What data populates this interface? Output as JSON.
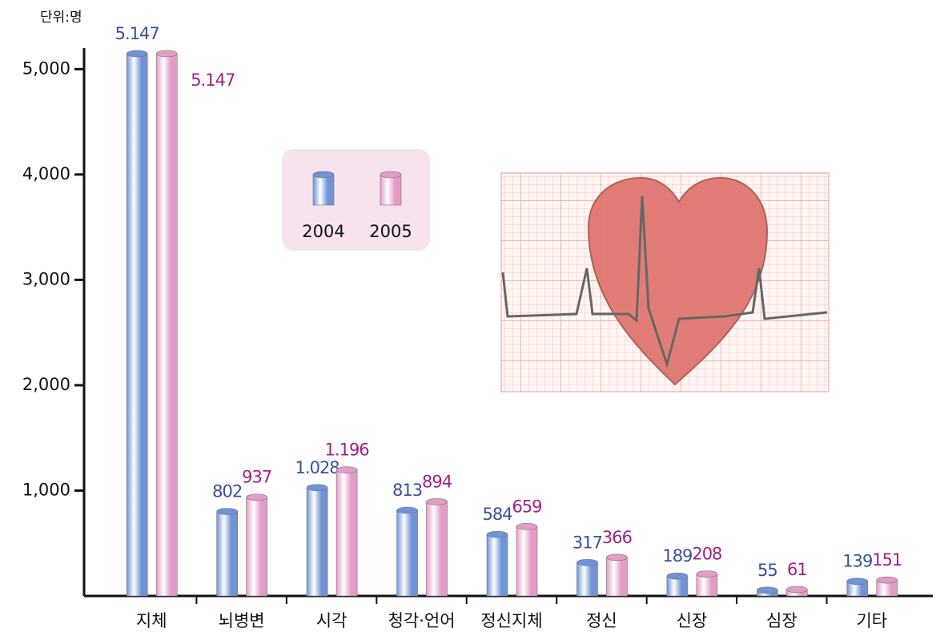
{
  "chart_data": {
    "type": "bar",
    "unit_label": "단위:명",
    "categories": [
      "지체",
      "뇌병변",
      "시각",
      "청각·언어",
      "정신지체",
      "정신",
      "신장",
      "심장",
      "기타"
    ],
    "series": [
      {
        "name": "2004",
        "color": "#6f93d6",
        "label_color": "#3a4fa0",
        "values": [
          5147,
          802,
          1028,
          813,
          584,
          317,
          189,
          55,
          139
        ],
        "value_labels": [
          "5.147",
          "802",
          "1.028",
          "813",
          "584",
          "317",
          "189",
          "55",
          "139"
        ]
      },
      {
        "name": "2005",
        "color": "#e39cc6",
        "label_color": "#a0208a",
        "values": [
          5147,
          937,
          1196,
          894,
          659,
          366,
          208,
          61,
          151
        ],
        "value_labels": [
          "5.147",
          "937",
          "1.196",
          "894",
          "659",
          "366",
          "208",
          "61",
          "151"
        ]
      }
    ],
    "ylim": [
      0,
      5200
    ],
    "yticks": [
      {
        "value": 1000,
        "label": "1,000"
      },
      {
        "value": 2000,
        "label": "2,000"
      },
      {
        "value": 3000,
        "label": "3,000"
      },
      {
        "value": 4000,
        "label": "4,000"
      },
      {
        "value": 5000,
        "label": "5,000"
      }
    ]
  }
}
